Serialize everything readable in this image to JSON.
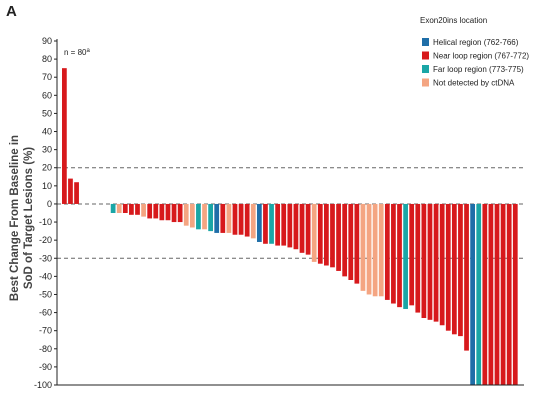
{
  "panel_label": "A",
  "chart_data": {
    "type": "bar",
    "title": "",
    "ylabel": "Best Change From Baseline in",
    "ylabel_line2": "SoD of Target Lesions (%)",
    "ylim": [
      -100,
      90
    ],
    "yticks": [
      90,
      80,
      70,
      60,
      50,
      40,
      30,
      20,
      10,
      0,
      -10,
      -20,
      -30,
      -40,
      -50,
      -60,
      -70,
      -80,
      -90,
      -100
    ],
    "reference_lines": [
      20,
      0,
      -30
    ],
    "annotation": "n = 80",
    "annotation_sup": "a",
    "legend": {
      "title": "Exon20ins location",
      "position": "top-right",
      "entries": [
        {
          "key": "helical",
          "label": "Helical region (762-766)",
          "color": "#1f6ea8"
        },
        {
          "key": "near",
          "label": "Near loop region (767-772)",
          "color": "#d7191c"
        },
        {
          "key": "far",
          "label": "Far loop region (773-775)",
          "color": "#1aa6a6"
        },
        {
          "key": "nd",
          "label": "Not detected by ctDNA",
          "color": "#f4a582"
        }
      ]
    },
    "bars": [
      {
        "v": 75,
        "g": "near"
      },
      {
        "v": 14,
        "g": "near"
      },
      {
        "v": 12,
        "g": "near"
      },
      {
        "v": null,
        "g": ""
      },
      {
        "v": null,
        "g": ""
      },
      {
        "v": null,
        "g": ""
      },
      {
        "v": null,
        "g": ""
      },
      {
        "v": null,
        "g": ""
      },
      {
        "v": -5,
        "g": "far"
      },
      {
        "v": -5,
        "g": "nd"
      },
      {
        "v": -5,
        "g": "near"
      },
      {
        "v": -6,
        "g": "near"
      },
      {
        "v": -6,
        "g": "near"
      },
      {
        "v": -7,
        "g": "nd"
      },
      {
        "v": -8,
        "g": "near"
      },
      {
        "v": -8,
        "g": "near"
      },
      {
        "v": -9,
        "g": "near"
      },
      {
        "v": -9,
        "g": "near"
      },
      {
        "v": -10,
        "g": "near"
      },
      {
        "v": -10,
        "g": "near"
      },
      {
        "v": -12,
        "g": "nd"
      },
      {
        "v": -13,
        "g": "nd"
      },
      {
        "v": -14,
        "g": "far"
      },
      {
        "v": -14,
        "g": "nd"
      },
      {
        "v": -15,
        "g": "far"
      },
      {
        "v": -16,
        "g": "helical"
      },
      {
        "v": -16,
        "g": "near"
      },
      {
        "v": -16,
        "g": "nd"
      },
      {
        "v": -17,
        "g": "near"
      },
      {
        "v": -17,
        "g": "near"
      },
      {
        "v": -18,
        "g": "near"
      },
      {
        "v": -19,
        "g": "nd"
      },
      {
        "v": -21,
        "g": "helical"
      },
      {
        "v": -22,
        "g": "near"
      },
      {
        "v": -22,
        "g": "far"
      },
      {
        "v": -23,
        "g": "near"
      },
      {
        "v": -23,
        "g": "near"
      },
      {
        "v": -24,
        "g": "near"
      },
      {
        "v": -25,
        "g": "near"
      },
      {
        "v": -27,
        "g": "near"
      },
      {
        "v": -28,
        "g": "near"
      },
      {
        "v": -32,
        "g": "nd"
      },
      {
        "v": -33,
        "g": "near"
      },
      {
        "v": -34,
        "g": "near"
      },
      {
        "v": -35,
        "g": "near"
      },
      {
        "v": -37,
        "g": "near"
      },
      {
        "v": -40,
        "g": "near"
      },
      {
        "v": -42,
        "g": "near"
      },
      {
        "v": -44,
        "g": "near"
      },
      {
        "v": -48,
        "g": "nd"
      },
      {
        "v": -50,
        "g": "nd"
      },
      {
        "v": -51,
        "g": "nd"
      },
      {
        "v": -51,
        "g": "nd"
      },
      {
        "v": -53,
        "g": "near"
      },
      {
        "v": -55,
        "g": "near"
      },
      {
        "v": -57,
        "g": "near"
      },
      {
        "v": -58,
        "g": "far"
      },
      {
        "v": -56,
        "g": "near"
      },
      {
        "v": -60,
        "g": "near"
      },
      {
        "v": -63,
        "g": "near"
      },
      {
        "v": -64,
        "g": "near"
      },
      {
        "v": -65,
        "g": "near"
      },
      {
        "v": -67,
        "g": "near"
      },
      {
        "v": -70,
        "g": "near"
      },
      {
        "v": -72,
        "g": "near"
      },
      {
        "v": -73,
        "g": "near"
      },
      {
        "v": -81,
        "g": "near"
      },
      {
        "v": -100,
        "g": "helical"
      },
      {
        "v": -100,
        "g": "far"
      },
      {
        "v": -100,
        "g": "near"
      },
      {
        "v": -100,
        "g": "near"
      },
      {
        "v": -100,
        "g": "near"
      },
      {
        "v": -100,
        "g": "near"
      },
      {
        "v": -100,
        "g": "near"
      },
      {
        "v": -100,
        "g": "near"
      }
    ]
  }
}
